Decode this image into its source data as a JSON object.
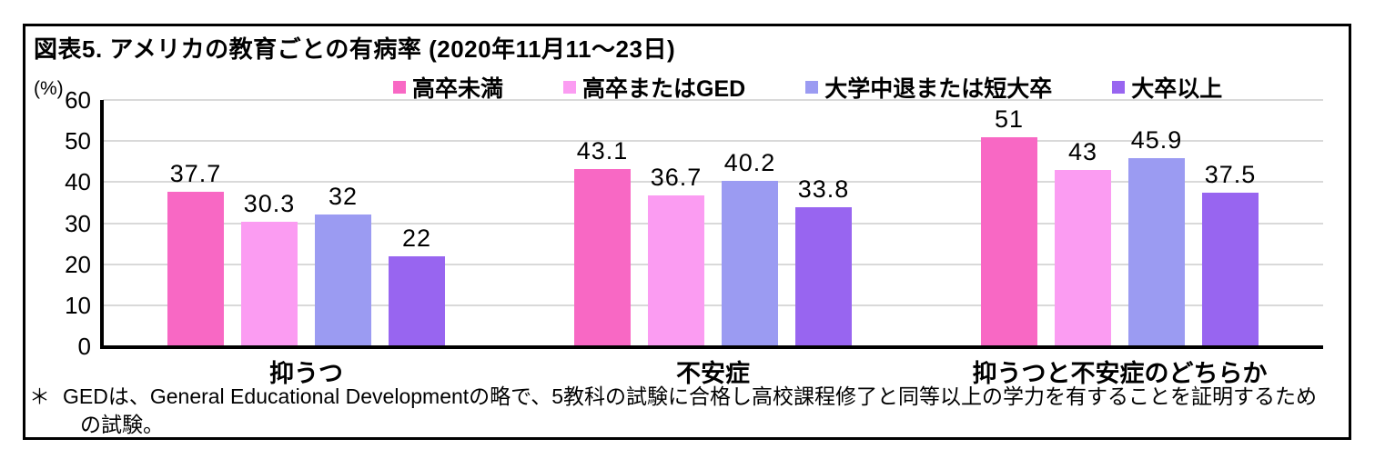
{
  "header": {
    "title": "図表5. アメリカの教育ごとの有病率 (2020年11月11～23日)"
  },
  "axes": {
    "y_unit_label": "(%)"
  },
  "chart_data": {
    "type": "bar",
    "title": "図表5. アメリカの教育ごとの有病率 (2020年11月11～23日)",
    "categories": [
      "抑うつ",
      "不安症",
      "抑うつと不安症のどちらか"
    ],
    "series": [
      {
        "name": "高卒未満",
        "color": "#f868c4",
        "values": [
          37.7,
          43.1,
          51
        ]
      },
      {
        "name": "高卒またはGED",
        "color": "#fb9cf2",
        "values": [
          30.3,
          36.7,
          43
        ]
      },
      {
        "name": "大学中退または短大卒",
        "color": "#9b9bf2",
        "values": [
          32,
          40.2,
          45.9
        ]
      },
      {
        "name": "大卒以上",
        "color": "#9865f0",
        "values": [
          22,
          33.8,
          37.5
        ]
      }
    ],
    "xlabel": "",
    "ylabel": "(%)",
    "ylim": [
      0,
      60
    ],
    "ytick_step": 10,
    "yticks": [
      "0",
      "10",
      "20",
      "30",
      "40",
      "50",
      "60"
    ],
    "grid": "horizontal",
    "legend_position": "top",
    "value_labels_shown": true
  },
  "colors": {
    "grid_line": "#d9d9d9",
    "axis_line": "#000000",
    "text": "#000000",
    "frame_border": "#000000",
    "background": "#ffffff"
  },
  "footnote": {
    "marker": "＊",
    "text": "GEDは、General Educational Developmentの略で、5教科の試験に合格し高校課程修了と同等以上の学力を有することを証明するための試験。"
  }
}
